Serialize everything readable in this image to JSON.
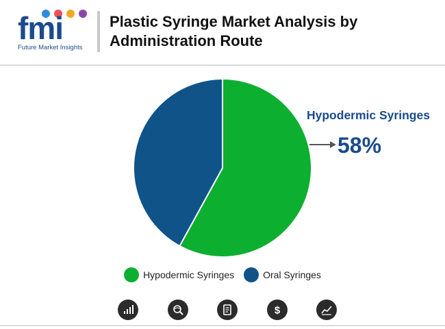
{
  "brand": {
    "logo_letters": "fmi",
    "logo_subtitle": "Future Market Insights",
    "dot_colors": [
      "#2f8de4",
      "#ef4e5b",
      "#f5a623",
      "#8e44ad"
    ]
  },
  "header": {
    "title": "Plastic Syringe Market Analysis by Administration Route"
  },
  "colors": {
    "hypodermic": "#0caf2f",
    "oral": "#0f5389",
    "callout": "#1a4b8c"
  },
  "chart_data": {
    "type": "pie",
    "title": "",
    "slices": [
      {
        "label": "Hypodermic Syringes",
        "value": 58,
        "color": "#0caf2f"
      },
      {
        "label": "Oral Syringes",
        "value": 42,
        "color": "#0f5389"
      }
    ],
    "start_angle": "12 o'clock, clockwise",
    "legend_position": "bottom",
    "callout": {
      "label": "Hypodermic Syringes",
      "value": "58%"
    }
  },
  "legend": [
    {
      "label": "Hypodermic Syringes",
      "color": "#0caf2f"
    },
    {
      "label": "Oral Syringes",
      "color": "#0f5389"
    }
  ],
  "footer_icons": [
    "bar-chart-icon",
    "globe-search-icon",
    "document-icon",
    "dollar-icon",
    "trend-chart-icon"
  ]
}
